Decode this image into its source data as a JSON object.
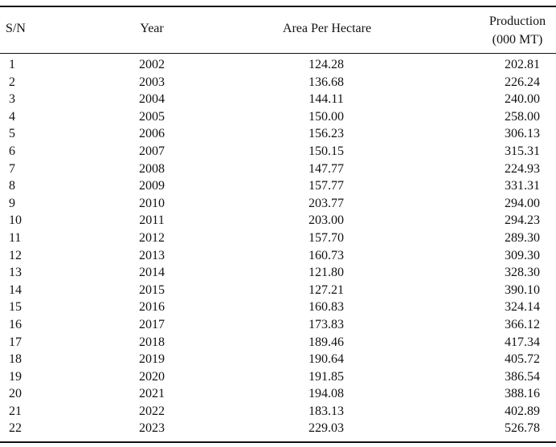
{
  "table": {
    "headers": {
      "sn": "S/N",
      "year": "Year",
      "area": "Area Per Hectare",
      "production_line1": "Production",
      "production_line2": "(000 MT)"
    },
    "rows": [
      {
        "sn": "1",
        "year": "2002",
        "area": "124.28",
        "production": "202.81"
      },
      {
        "sn": "2",
        "year": "2003",
        "area": "136.68",
        "production": "226.24"
      },
      {
        "sn": "3",
        "year": "2004",
        "area": "144.11",
        "production": "240.00"
      },
      {
        "sn": "4",
        "year": "2005",
        "area": "150.00",
        "production": "258.00"
      },
      {
        "sn": "5",
        "year": "2006",
        "area": "156.23",
        "production": "306.13"
      },
      {
        "sn": "6",
        "year": "2007",
        "area": "150.15",
        "production": "315.31"
      },
      {
        "sn": "7",
        "year": "2008",
        "area": "147.77",
        "production": "224.93"
      },
      {
        "sn": "8",
        "year": "2009",
        "area": "157.77",
        "production": "331.31"
      },
      {
        "sn": "9",
        "year": "2010",
        "area": "203.77",
        "production": "294.00"
      },
      {
        "sn": "10",
        "year": "2011",
        "area": "203.00",
        "production": "294.23"
      },
      {
        "sn": "11",
        "year": "2012",
        "area": "157.70",
        "production": "289.30"
      },
      {
        "sn": "12",
        "year": "2013",
        "area": "160.73",
        "production": "309.30"
      },
      {
        "sn": "13",
        "year": "2014",
        "area": "121.80",
        "production": "328.30"
      },
      {
        "sn": "14",
        "year": "2015",
        "area": "127.21",
        "production": "390.10"
      },
      {
        "sn": "15",
        "year": "2016",
        "area": "160.83",
        "production": "324.14"
      },
      {
        "sn": "16",
        "year": "2017",
        "area": "173.83",
        "production": "366.12"
      },
      {
        "sn": "17",
        "year": "2018",
        "area": "189.46",
        "production": "417.34"
      },
      {
        "sn": "18",
        "year": "2019",
        "area": "190.64",
        "production": "405.72"
      },
      {
        "sn": "19",
        "year": "2020",
        "area": "191.85",
        "production": "386.54"
      },
      {
        "sn": "20",
        "year": "2021",
        "area": "194.08",
        "production": "388.16"
      },
      {
        "sn": "21",
        "year": "2022",
        "area": "183.13",
        "production": "402.89"
      },
      {
        "sn": "22",
        "year": "2023",
        "area": "229.03",
        "production": "526.78"
      }
    ]
  }
}
